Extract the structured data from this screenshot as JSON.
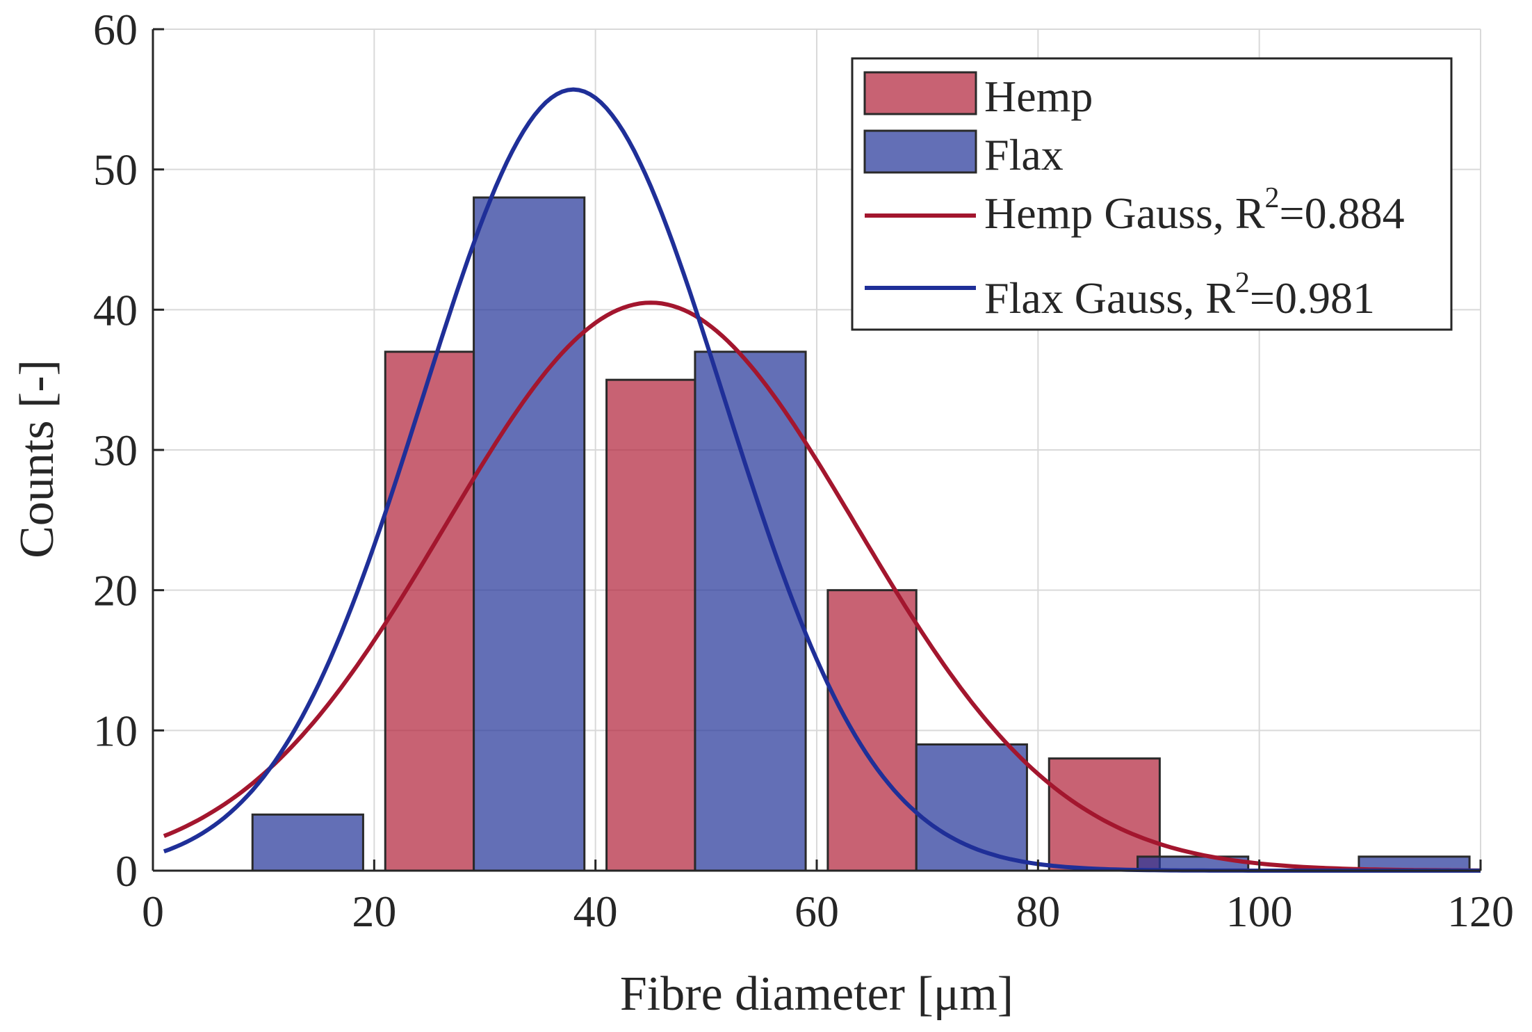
{
  "colors": {
    "hemp_bar": "#b3263d",
    "flax_bar": "#27379a",
    "hemp_curve": "#a3162e",
    "flax_curve": "#1f2f98",
    "grid": "#d9d9d9",
    "axis": "#262626"
  },
  "chart_data": {
    "type": "bar",
    "title": "",
    "xlabel": "Fibre diameter [μm]",
    "ylabel": "Counts [-]",
    "xlim": [
      0,
      120
    ],
    "ylim": [
      0,
      60
    ],
    "xticks": [
      0,
      20,
      40,
      60,
      80,
      100,
      120
    ],
    "yticks": [
      0,
      10,
      20,
      30,
      40,
      50,
      60
    ],
    "grid": true,
    "legend_position": "top-right",
    "series": [
      {
        "name": "Hemp",
        "kind": "histogram",
        "bins": [
          [
            21,
            29
          ],
          [
            41,
            49
          ],
          [
            61,
            69
          ],
          [
            81,
            91
          ]
        ],
        "values": [
          37,
          35,
          20,
          8
        ]
      },
      {
        "name": "Flax",
        "kind": "histogram",
        "bins": [
          [
            9,
            19
          ],
          [
            29,
            39
          ],
          [
            49,
            59
          ],
          [
            69,
            79
          ],
          [
            89,
            99
          ],
          [
            109,
            119
          ]
        ],
        "values": [
          4,
          48,
          37,
          9,
          1,
          1
        ]
      },
      {
        "name": "Hemp Gauss",
        "kind": "gaussian_fit",
        "r_squared": 0.884,
        "amplitude": 40.5,
        "mean": 45,
        "sigma": 18.6
      },
      {
        "name": "Flax Gauss",
        "kind": "gaussian_fit",
        "r_squared": 0.981,
        "amplitude": 55.7,
        "mean": 38,
        "sigma": 13.6
      }
    ],
    "legend": {
      "hemp_label": "Hemp",
      "flax_label": "Flax",
      "hemp_gauss_prefix": "Hemp Gauss, R",
      "flax_gauss_prefix": "Flax Gauss, R",
      "superscript": "2",
      "hemp_gauss_value": "=0.884",
      "flax_gauss_value": "=0.981"
    }
  }
}
